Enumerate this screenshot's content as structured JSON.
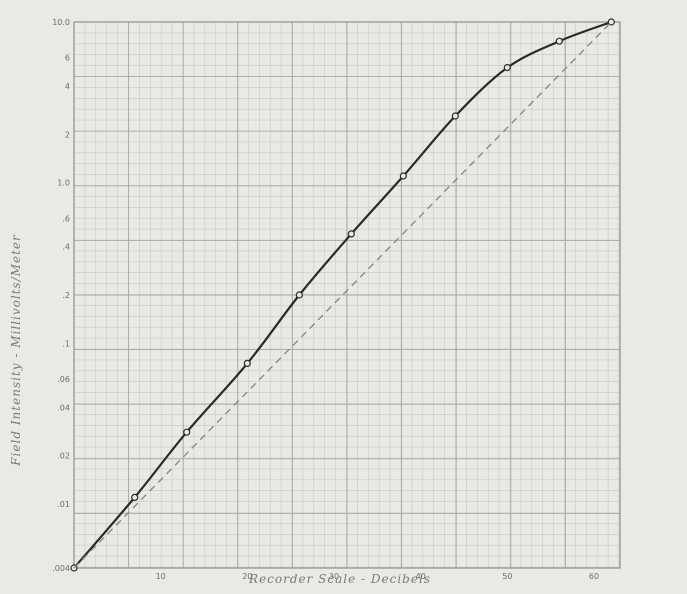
{
  "chart_data": {
    "type": "line",
    "xlabel": "Recorder Scale - Decibels",
    "ylabel": "Field Intensity - Millivolts/Meter",
    "xlim": [
      0,
      63
    ],
    "ylim": [
      0.004,
      10.0
    ],
    "y_scale": "log",
    "grid": true,
    "x_ticks": [
      {
        "value": 10,
        "label": "10"
      },
      {
        "value": 20,
        "label": "20"
      },
      {
        "value": 30,
        "label": "30"
      },
      {
        "value": 40,
        "label": "40"
      },
      {
        "value": 50,
        "label": "50"
      },
      {
        "value": 60,
        "label": "60"
      }
    ],
    "y_ticks": [
      {
        "value": 0.004,
        "label": ".004"
      },
      {
        "value": 0.01,
        "label": ".01"
      },
      {
        "value": 0.02,
        "label": ".02"
      },
      {
        "value": 0.04,
        "label": ".04"
      },
      {
        "value": 0.06,
        "label": ".06"
      },
      {
        "value": 0.1,
        "label": ".1"
      },
      {
        "value": 0.2,
        "label": ".2"
      },
      {
        "value": 0.4,
        "label": ".4"
      },
      {
        "value": 0.6,
        "label": ".6"
      },
      {
        "value": 1.0,
        "label": "1.0"
      },
      {
        "value": 2,
        "label": "2"
      },
      {
        "value": 4,
        "label": "4"
      },
      {
        "value": 6,
        "label": "6"
      },
      {
        "value": 10.0,
        "label": "10.0"
      }
    ],
    "series": [
      {
        "style": "solid",
        "color": "#2a2a2a",
        "markers": true,
        "x": [
          0,
          7,
          13,
          20,
          26,
          32,
          38,
          44,
          50,
          56,
          62
        ],
        "y": [
          0.004,
          0.011,
          0.028,
          0.075,
          0.2,
          0.48,
          1.1,
          2.6,
          5.2,
          7.6,
          10.0
        ]
      },
      {
        "style": "dashed",
        "color": "#8a8a8a",
        "markers": false,
        "x": [
          0,
          62
        ],
        "y": [
          0.004,
          10.0
        ]
      }
    ]
  }
}
